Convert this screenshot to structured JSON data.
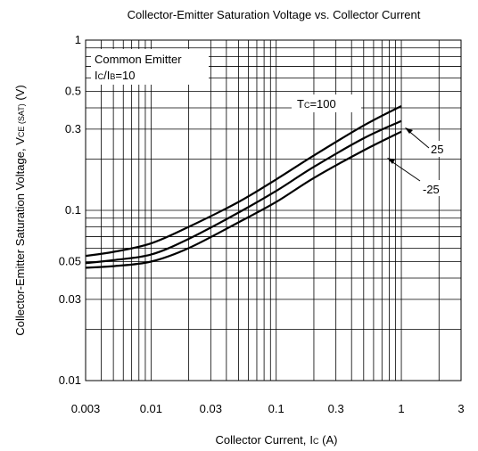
{
  "chart_data": {
    "type": "line",
    "title": "Collector-Emitter Saturation Voltage vs. Collector Current",
    "xlabel": {
      "main": "Collector Current,",
      "sym": "I",
      "sub": "C",
      "unit": " (A)"
    },
    "ylabel": {
      "main": "Collector-Emitter Saturation Voltage, V",
      "sub": "CE (SAT)",
      "unit": "  (V)"
    },
    "x_scale": "log",
    "y_scale": "log",
    "xlim": [
      0.003,
      3
    ],
    "ylim": [
      0.01,
      1
    ],
    "x_ticks": [
      0.003,
      0.01,
      0.03,
      0.1,
      0.3,
      1,
      3
    ],
    "x_tick_labels": [
      "0.003",
      "0.01",
      "0.03",
      "0.1",
      "0.3",
      "1",
      "3"
    ],
    "y_ticks": [
      0.01,
      0.03,
      0.05,
      0.1,
      0.3,
      0.5,
      1
    ],
    "y_tick_labels": [
      "0.01",
      "0.03",
      "0.05",
      "0.1",
      "0.3",
      "0.5",
      "1"
    ],
    "grid": true,
    "conditions": {
      "line1": "Common Emitter",
      "line2_sym1": "I",
      "line2_sub1": "C",
      "line2_slash": "/I",
      "line2_sub2": "B",
      "line2_rest": "=10"
    },
    "series": [
      {
        "name": "Tc=100",
        "label_sym": "T",
        "label_sub": "C",
        "label_rest": "=100",
        "x": [
          0.003,
          0.005,
          0.01,
          0.02,
          0.05,
          0.1,
          0.2,
          0.5,
          1.0
        ],
        "y": [
          0.054,
          0.057,
          0.064,
          0.08,
          0.112,
          0.152,
          0.21,
          0.315,
          0.41
        ]
      },
      {
        "name": "25",
        "label": "25",
        "x": [
          0.003,
          0.005,
          0.01,
          0.02,
          0.05,
          0.1,
          0.2,
          0.5,
          1.0
        ],
        "y": [
          0.049,
          0.051,
          0.055,
          0.068,
          0.097,
          0.13,
          0.18,
          0.265,
          0.335
        ]
      },
      {
        "name": "-25",
        "label": "-25",
        "x": [
          0.003,
          0.005,
          0.01,
          0.02,
          0.05,
          0.1,
          0.2,
          0.5,
          1.0
        ],
        "y": [
          0.046,
          0.047,
          0.05,
          0.06,
          0.085,
          0.112,
          0.155,
          0.225,
          0.29
        ]
      }
    ]
  }
}
